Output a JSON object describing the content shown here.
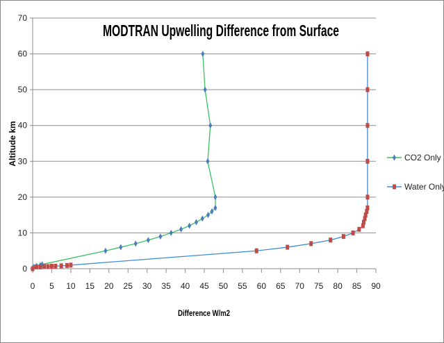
{
  "chart_data": {
    "type": "line",
    "title": "MODTRAN Upwelling Difference from Surface",
    "xlabel": "Difference W/m2",
    "ylabel": "Altitude km",
    "xlim": [
      0,
      90
    ],
    "ylim": [
      0,
      70
    ],
    "xticks": [
      "0",
      "5",
      "10",
      "15",
      "20",
      "25",
      "30",
      "35",
      "40",
      "45",
      "50",
      "55",
      "60",
      "65",
      "70",
      "75",
      "80",
      "85",
      "90"
    ],
    "yticks": [
      "0",
      "10",
      "20",
      "30",
      "40",
      "50",
      "60",
      "70"
    ],
    "grid": "horizontal",
    "legend_position": "right",
    "series": [
      {
        "name": "CO2 Only",
        "line_color": "#3cc060",
        "marker_color": "#4a7ebb",
        "marker": "diamond",
        "points": [
          [
            0,
            0
          ],
          [
            0.3,
            0.5
          ],
          [
            1,
            0.8
          ],
          [
            2,
            1
          ],
          [
            2.5,
            1.2
          ],
          [
            19.1,
            5
          ],
          [
            23.1,
            6
          ],
          [
            27,
            7
          ],
          [
            30.3,
            8
          ],
          [
            33.5,
            9
          ],
          [
            36.3,
            10
          ],
          [
            38.9,
            11
          ],
          [
            41.1,
            12
          ],
          [
            42.9,
            13
          ],
          [
            44.5,
            14
          ],
          [
            46,
            15
          ],
          [
            47,
            16
          ],
          [
            47.9,
            17
          ],
          [
            47.9,
            20
          ],
          [
            45.9,
            30
          ],
          [
            46.6,
            40
          ],
          [
            45.2,
            50
          ],
          [
            44.6,
            60
          ]
        ]
      },
      {
        "name": "Water Only",
        "line_color": "#3a8ad4",
        "marker_color": "#be4b48",
        "marker": "square",
        "points": [
          [
            0,
            0
          ],
          [
            1,
            0.5
          ],
          [
            2,
            0.5
          ],
          [
            3,
            0.6
          ],
          [
            4,
            0.6
          ],
          [
            5,
            0.7
          ],
          [
            6,
            0.7
          ],
          [
            7.5,
            0.8
          ],
          [
            9,
            0.9
          ],
          [
            10,
            1
          ],
          [
            58.7,
            5
          ],
          [
            66.8,
            6
          ],
          [
            73,
            7
          ],
          [
            78.1,
            8
          ],
          [
            81.5,
            9
          ],
          [
            84,
            10
          ],
          [
            85.6,
            11
          ],
          [
            86.6,
            12
          ],
          [
            86.8,
            13
          ],
          [
            87.1,
            14
          ],
          [
            87.3,
            15
          ],
          [
            87.6,
            16
          ],
          [
            87.8,
            17
          ],
          [
            87.8,
            20
          ],
          [
            87.8,
            30
          ],
          [
            87.8,
            40
          ],
          [
            87.8,
            50
          ],
          [
            87.8,
            60
          ]
        ]
      }
    ]
  }
}
